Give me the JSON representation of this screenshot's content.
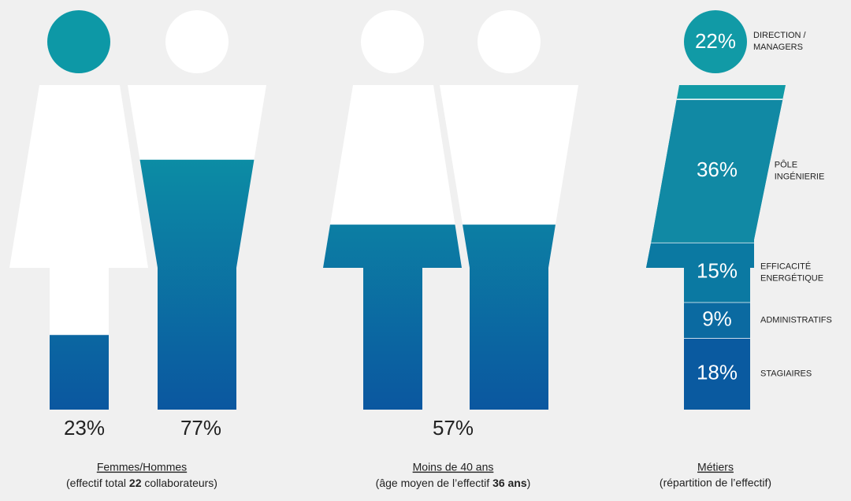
{
  "panels": [
    {
      "kind": "gender",
      "figures": [
        {
          "value": 23,
          "value_label": "23%"
        },
        {
          "value": 77,
          "value_label": "77%"
        }
      ],
      "caption": "Femmes/Hommes",
      "note": [
        "(effectif total ",
        "22",
        " collaborateurs)"
      ]
    },
    {
      "kind": "age",
      "value": 57,
      "value_label": "57%",
      "caption": "Moins de 40 ans",
      "note": [
        "(âge moyen de l’effectif ",
        "36 ans",
        ")"
      ]
    },
    {
      "kind": "jobs",
      "segments": [
        {
          "value": 22,
          "value_label": "22%",
          "label": [
            "DIRECTION /",
            "MANAGERS"
          ],
          "color": "#119aa6"
        },
        {
          "value": 36,
          "value_label": "36%",
          "label": [
            "PÔLE",
            "INGÉNIERIE"
          ],
          "color": "#1189a4"
        },
        {
          "value": 15,
          "value_label": "15%",
          "label": [
            "EFFICACITÉ",
            "ENERGÉTIQUE"
          ],
          "color": "#0b79a2"
        },
        {
          "value": 9,
          "value_label": "9%",
          "label": [
            "ADMINISTRATIFS"
          ],
          "color": "#0b6aa1"
        },
        {
          "value": 18,
          "value_label": "18%",
          "label": [
            "STAGIAIRES"
          ],
          "color": "#0a5aa0"
        }
      ],
      "caption": "Métiers",
      "note": "(répartition de l’effectif)"
    }
  ]
}
